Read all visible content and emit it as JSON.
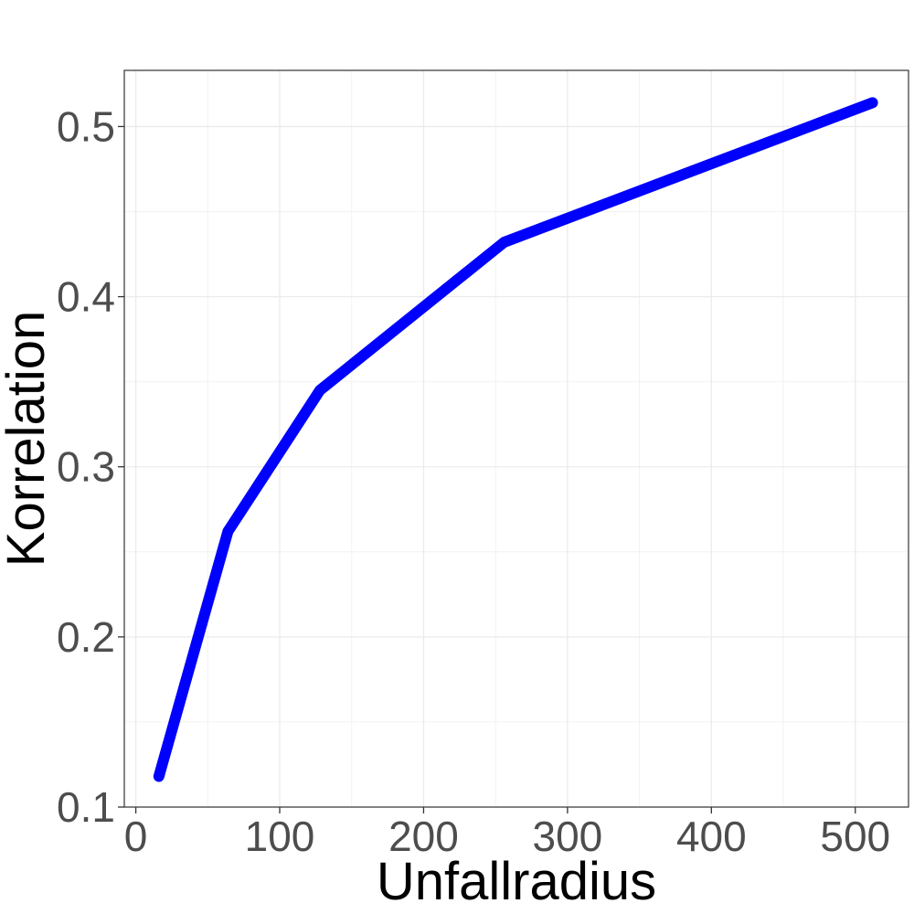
{
  "chart_data": {
    "type": "line",
    "xlabel": "Unfallradius",
    "ylabel": "Korrelation",
    "xlim": [
      -8,
      537
    ],
    "ylim": [
      0.1,
      0.533
    ],
    "x_ticks": [
      0,
      100,
      200,
      300,
      400,
      500
    ],
    "x_tick_labels": [
      "0",
      "100",
      "200",
      "300",
      "400",
      "500"
    ],
    "y_ticks": [
      0.1,
      0.2,
      0.3,
      0.4,
      0.5
    ],
    "y_tick_labels": [
      "0.1",
      "0.2",
      "0.3",
      "0.4",
      "0.5"
    ],
    "grid": true,
    "series": [
      {
        "color": "#0000ff",
        "x": [
          16,
          64,
          128,
          256,
          512
        ],
        "y": [
          0.118,
          0.262,
          0.345,
          0.432,
          0.514
        ]
      }
    ]
  }
}
